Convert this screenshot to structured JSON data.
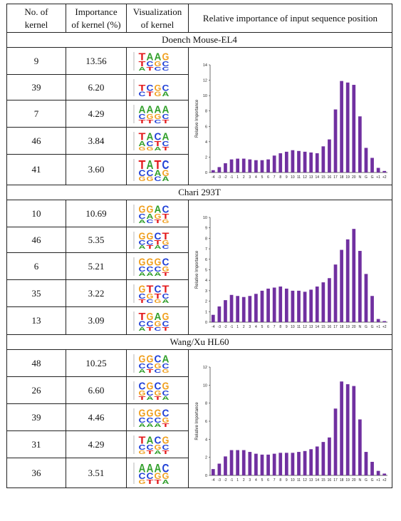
{
  "headers": {
    "kernel_no": [
      "No. of",
      "kernel"
    ],
    "importance": [
      "Importance",
      "of kernel (%)"
    ],
    "visualization": [
      "Visualization",
      "of kernel"
    ],
    "relative": "Relative importance of input sequence position"
  },
  "base_colors": {
    "A": "#33a02c",
    "C": "#1f3fd6",
    "G": "#f0a020",
    "T": "#e31a1c"
  },
  "sections": [
    {
      "title": "Doench Mouse-EL4",
      "kernels": [
        {
          "no": "9",
          "importance": "13.56",
          "logo": [
            [
              "T",
              "A",
              "A",
              "G"
            ],
            [
              "T",
              "C",
              "G",
              "C"
            ],
            [
              "A",
              "T",
              "C",
              "C"
            ]
          ]
        },
        {
          "no": "39",
          "importance": "6.20",
          "logo": [
            [
              "T",
              "C",
              "G",
              "C"
            ],
            [
              "C",
              "T",
              "G",
              "A"
            ]
          ]
        },
        {
          "no": "7",
          "importance": "4.29",
          "logo": [
            [
              "A",
              "A",
              "A",
              "A"
            ],
            [
              "C",
              "G",
              "G",
              "C"
            ],
            [
              "T",
              "T",
              "C",
              "T"
            ]
          ]
        },
        {
          "no": "46",
          "importance": "3.84",
          "logo": [
            [
              "T",
              "A",
              "C",
              "A"
            ],
            [
              "A",
              "C",
              "T",
              "C"
            ],
            [
              "G",
              "G",
              "A",
              "T"
            ]
          ]
        },
        {
          "no": "41",
          "importance": "3.60",
          "logo": [
            [
              "T",
              "A",
              "T",
              "C"
            ],
            [
              "C",
              "C",
              "A",
              "G"
            ],
            [
              "G",
              "G",
              "C",
              "A"
            ]
          ]
        }
      ]
    },
    {
      "title": "Chari 293T",
      "kernels": [
        {
          "no": "10",
          "importance": "10.69",
          "logo": [
            [
              "G",
              "G",
              "A",
              "C"
            ],
            [
              "C",
              "A",
              "G",
              "T"
            ],
            [
              "A",
              "C",
              "T",
              "G"
            ]
          ]
        },
        {
          "no": "46",
          "importance": "5.35",
          "logo": [
            [
              "G",
              "G",
              "C",
              "T"
            ],
            [
              "C",
              "C",
              "T",
              "G"
            ],
            [
              "A",
              "T",
              "A",
              "C"
            ]
          ]
        },
        {
          "no": "6",
          "importance": "5.21",
          "logo": [
            [
              "G",
              "G",
              "G",
              "C"
            ],
            [
              "C",
              "C",
              "C",
              "G"
            ],
            [
              "A",
              "A",
              "A",
              "T"
            ]
          ]
        },
        {
          "no": "35",
          "importance": "3.22",
          "logo": [
            [
              "G",
              "T",
              "C",
              "T"
            ],
            [
              "C",
              "G",
              "T",
              "C"
            ],
            [
              "T",
              "C",
              "G",
              "A"
            ]
          ]
        },
        {
          "no": "13",
          "importance": "3.09",
          "logo": [
            [
              "T",
              "G",
              "A",
              "G"
            ],
            [
              "C",
              "C",
              "G",
              "C"
            ],
            [
              "A",
              "T",
              "C",
              "T"
            ]
          ]
        }
      ]
    },
    {
      "title": "Wang/Xu HL60",
      "kernels": [
        {
          "no": "48",
          "importance": "10.25",
          "logo": [
            [
              "G",
              "G",
              "C",
              "A"
            ],
            [
              "C",
              "C",
              "G",
              "C"
            ],
            [
              "A",
              "T",
              "C",
              "G"
            ]
          ]
        },
        {
          "no": "26",
          "importance": "6.60",
          "logo": [
            [
              "C",
              "G",
              "C",
              "G"
            ],
            [
              "G",
              "C",
              "G",
              "C"
            ],
            [
              "T",
              "A",
              "T",
              "A"
            ]
          ]
        },
        {
          "no": "39",
          "importance": "4.46",
          "logo": [
            [
              "G",
              "G",
              "G",
              "C"
            ],
            [
              "C",
              "C",
              "C",
              "G"
            ],
            [
              "A",
              "A",
              "A",
              "T"
            ]
          ]
        },
        {
          "no": "31",
          "importance": "4.29",
          "logo": [
            [
              "T",
              "A",
              "C",
              "G"
            ],
            [
              "C",
              "C",
              "G",
              "C"
            ],
            [
              "G",
              "T",
              "A",
              "T"
            ]
          ]
        },
        {
          "no": "36",
          "importance": "3.51",
          "logo": [
            [
              "A",
              "A",
              "A",
              "C"
            ],
            [
              "C",
              "C",
              "G",
              "G"
            ],
            [
              "G",
              "T",
              "T",
              "A"
            ]
          ]
        }
      ]
    }
  ],
  "chart_data": [
    {
      "type": "bar",
      "title": "",
      "xlabel": "",
      "ylabel": "Relative Importance",
      "ylim": [
        0,
        14
      ],
      "yticks": [
        0,
        2,
        4,
        6,
        8,
        10,
        12,
        14
      ],
      "bar_color": "#7030a0",
      "categories": [
        "-4",
        "-3",
        "-2",
        "-1",
        "1",
        "2",
        "3",
        "4",
        "5",
        "6",
        "7",
        "8",
        "9",
        "10",
        "11",
        "12",
        "13",
        "14",
        "15",
        "16",
        "17",
        "18",
        "19",
        "20",
        "N",
        "G",
        "G",
        "+1",
        "+2"
      ],
      "values": [
        0.3,
        0.7,
        1.2,
        1.7,
        1.8,
        1.8,
        1.7,
        1.6,
        1.6,
        1.7,
        2.2,
        2.5,
        2.7,
        2.9,
        2.8,
        2.7,
        2.6,
        2.5,
        3.4,
        4.3,
        8.2,
        11.9,
        11.7,
        11.4,
        7.3,
        3.2,
        1.9,
        0.6,
        0.2
      ]
    },
    {
      "type": "bar",
      "title": "",
      "xlabel": "",
      "ylabel": "Relative Importance",
      "ylim": [
        0,
        10
      ],
      "yticks": [
        0,
        1,
        2,
        3,
        4,
        5,
        6,
        7,
        8,
        9,
        10
      ],
      "bar_color": "#7030a0",
      "categories": [
        "-4",
        "-3",
        "-2",
        "-1",
        "1",
        "2",
        "3",
        "4",
        "5",
        "6",
        "7",
        "8",
        "9",
        "10",
        "11",
        "12",
        "13",
        "14",
        "15",
        "16",
        "17",
        "18",
        "19",
        "20",
        "N",
        "G",
        "G",
        "+1",
        "+2"
      ],
      "values": [
        0.7,
        1.5,
        2.1,
        2.6,
        2.5,
        2.4,
        2.5,
        2.7,
        3.0,
        3.2,
        3.3,
        3.4,
        3.2,
        3.0,
        3.0,
        2.9,
        3.1,
        3.4,
        3.8,
        4.2,
        5.5,
        6.9,
        7.9,
        8.9,
        6.8,
        4.6,
        2.5,
        0.3,
        0.1
      ]
    },
    {
      "type": "bar",
      "title": "",
      "xlabel": "",
      "ylabel": "Relative Importance",
      "ylim": [
        0,
        12
      ],
      "yticks": [
        0,
        2,
        4,
        6,
        8,
        10,
        12
      ],
      "bar_color": "#7030a0",
      "categories": [
        "-4",
        "-3",
        "-2",
        "-1",
        "1",
        "2",
        "3",
        "4",
        "5",
        "6",
        "7",
        "8",
        "9",
        "10",
        "11",
        "12",
        "13",
        "14",
        "15",
        "16",
        "17",
        "18",
        "19",
        "20",
        "N",
        "G",
        "G",
        "+1",
        "+2"
      ],
      "values": [
        0.7,
        1.3,
        2.1,
        2.8,
        2.8,
        2.8,
        2.6,
        2.4,
        2.3,
        2.3,
        2.4,
        2.5,
        2.5,
        2.5,
        2.6,
        2.7,
        2.9,
        3.2,
        3.7,
        4.2,
        7.4,
        10.4,
        10.1,
        9.9,
        6.2,
        2.6,
        1.5,
        0.5,
        0.2
      ]
    }
  ]
}
